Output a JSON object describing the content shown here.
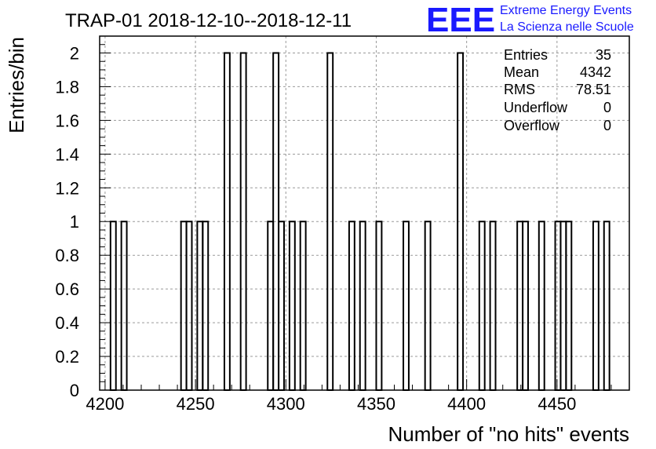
{
  "logo": {
    "mark": "EEE",
    "line1": "Extreme Energy Events",
    "line2": "La Scienza nelle Scuole",
    "color": "#1a1aff"
  },
  "stats": {
    "entries_label": "Entries",
    "entries_value": "35",
    "mean_label": "Mean",
    "mean_value": "4342",
    "rms_label": "RMS",
    "rms_value": "78.51",
    "underflow_label": "Underflow",
    "underflow_value": "0",
    "overflow_label": "Overflow",
    "overflow_value": "0"
  },
  "chart_data": {
    "type": "histogram",
    "title": "TRAP-01 2018-12-10--2018-12-11",
    "xlabel": "Number of \"no hits\" events",
    "ylabel": "Entries/bin",
    "xlim": [
      4197,
      4490
    ],
    "ylim": [
      0,
      2.1
    ],
    "bin_width": 3,
    "x_ticks": [
      4200,
      4250,
      4300,
      4350,
      4400,
      4450
    ],
    "x_tick_labels": [
      "4200",
      "4250",
      "4300",
      "4350",
      "4400",
      "4450"
    ],
    "y_ticks": [
      0,
      0.2,
      0.4,
      0.6,
      0.8,
      1,
      1.2,
      1.4,
      1.6,
      1.8,
      2
    ],
    "y_tick_labels": [
      "0",
      "0.2",
      "0.4",
      "0.6",
      "0.8",
      "1",
      "1.2",
      "1.4",
      "1.6",
      "1.8",
      "2"
    ],
    "grid": true,
    "bins": [
      {
        "x": 4203,
        "count": 1
      },
      {
        "x": 4209,
        "count": 1
      },
      {
        "x": 4242,
        "count": 1
      },
      {
        "x": 4245,
        "count": 1
      },
      {
        "x": 4251,
        "count": 1
      },
      {
        "x": 4254,
        "count": 1
      },
      {
        "x": 4266,
        "count": 2
      },
      {
        "x": 4275,
        "count": 2
      },
      {
        "x": 4290,
        "count": 1
      },
      {
        "x": 4293,
        "count": 2
      },
      {
        "x": 4296,
        "count": 1
      },
      {
        "x": 4302,
        "count": 1
      },
      {
        "x": 4308,
        "count": 1
      },
      {
        "x": 4323,
        "count": 2
      },
      {
        "x": 4335,
        "count": 1
      },
      {
        "x": 4341,
        "count": 1
      },
      {
        "x": 4350,
        "count": 1
      },
      {
        "x": 4365,
        "count": 1
      },
      {
        "x": 4377,
        "count": 1
      },
      {
        "x": 4395,
        "count": 2
      },
      {
        "x": 4407,
        "count": 1
      },
      {
        "x": 4413,
        "count": 1
      },
      {
        "x": 4428,
        "count": 1
      },
      {
        "x": 4431,
        "count": 1
      },
      {
        "x": 4440,
        "count": 1
      },
      {
        "x": 4449,
        "count": 1
      },
      {
        "x": 4452,
        "count": 1
      },
      {
        "x": 4455,
        "count": 1
      },
      {
        "x": 4470,
        "count": 1
      },
      {
        "x": 4476,
        "count": 1
      }
    ]
  }
}
